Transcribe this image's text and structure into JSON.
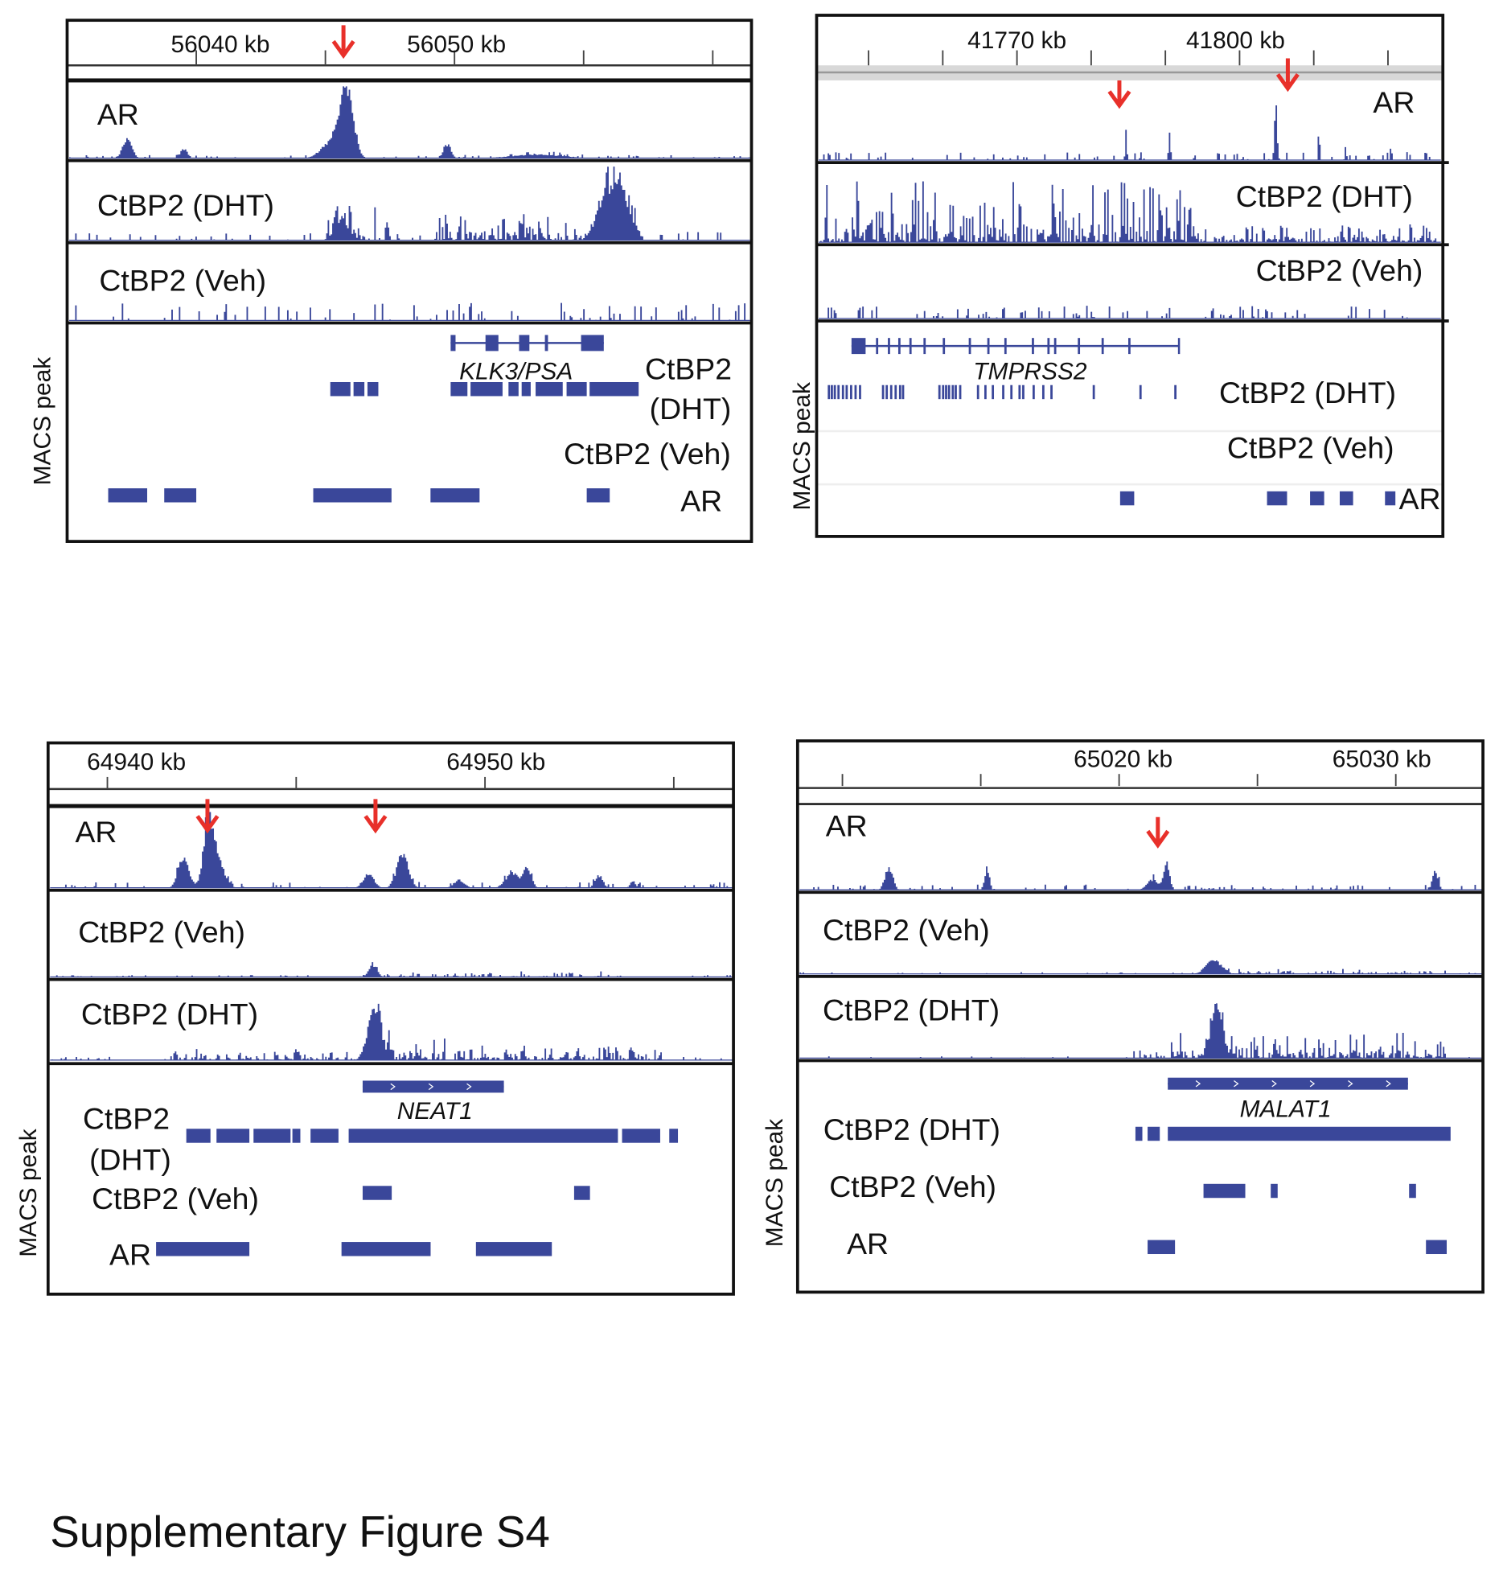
{
  "caption": "Supplementary Figure S4",
  "colors": {
    "signal": "#3a479a",
    "arrow": "#e8302a",
    "frame": "#111111"
  },
  "chart_data": [
    {
      "type": "genome-track",
      "xunit": "kb",
      "xlim": [
        56035.0,
        56061.5
      ],
      "ticks": [
        56040,
        56045,
        56050,
        56055,
        56060
      ],
      "tick_labels": [
        "56040 kb",
        "56050 kb"
      ],
      "arrows_kb": [
        56045.7
      ],
      "tracks": [
        {
          "name": "AR",
          "peaks": [
            [
              56037.3,
              0.32,
              0.25
            ],
            [
              56039.5,
              0.14,
              0.2
            ],
            [
              56045.8,
              1.0,
              0.35
            ],
            [
              56045.3,
              0.3,
              0.6
            ],
            [
              56049.7,
              0.22,
              0.2
            ],
            [
              56053.2,
              0.06,
              1.5
            ]
          ],
          "regions": [],
          "noise": 0.05
        },
        {
          "name": "CtBP2 (DHT)",
          "peaks": [
            [
              56045.6,
              0.3,
              0.4
            ],
            [
              56055.9,
              0.7,
              0.5
            ],
            [
              56056.5,
              0.55,
              0.4
            ]
          ],
          "regions": [
            [
              56045.0,
              56047.5,
              0.35
            ],
            [
              56049.2,
              56057.2,
              0.4
            ]
          ],
          "noise": 0.12
        },
        {
          "name": "CtBP2 (Veh)",
          "peaks": [],
          "regions": [],
          "noise": 0.25
        }
      ],
      "macs_label": "MACS peak",
      "gene": {
        "name": "KLK3/PSA",
        "start": 56049.85,
        "end": 56055.78,
        "exons": [
          [
            56049.85,
            56050.04
          ],
          [
            56051.2,
            56051.7
          ],
          [
            56052.5,
            56052.9
          ],
          [
            56053.5,
            56053.62
          ],
          [
            56054.9,
            56055.78
          ]
        ]
      },
      "peak_rows": [
        {
          "name": "CtBP2\n(DHT)",
          "label_lines": [
            "CtBP2",
            "(DHT)"
          ],
          "peaks": [
            [
              56045.19,
              56045.97
            ],
            [
              56046.09,
              56046.51
            ],
            [
              56046.63,
              56047.05
            ],
            [
              56049.85,
              56050.5
            ],
            [
              56050.62,
              56051.86
            ],
            [
              56052.09,
              56052.48
            ],
            [
              56052.6,
              56052.95
            ],
            [
              56053.14,
              56054.19
            ],
            [
              56054.34,
              56055.12
            ],
            [
              56055.23,
              56057.13
            ]
          ]
        },
        {
          "name": "CtBP2 (Veh)",
          "label_lines": [
            "CtBP2 (Veh)"
          ],
          "peaks": []
        },
        {
          "name": "AR",
          "label_lines": [
            "AR"
          ],
          "peaks": [
            [
              56036.59,
              56038.1
            ],
            [
              56038.76,
              56040.0
            ],
            [
              56044.53,
              56047.56
            ],
            [
              56049.07,
              56050.97
            ],
            [
              56055.12,
              56056.01
            ]
          ]
        }
      ]
    },
    {
      "type": "genome-track",
      "xunit": "kb",
      "xlim": [
        41743.0,
        41827.4
      ],
      "ticks": [
        41750,
        41760,
        41770,
        41780,
        41790,
        41800,
        41810,
        41820
      ],
      "tick_labels": [
        "41770 kb",
        "41800 kb"
      ],
      "arrows_kb": [
        41783.8,
        41806.5
      ],
      "tracks": [
        {
          "name": "AR",
          "peaks": [
            [
              41784.6,
              0.5,
              0.15
            ],
            [
              41790.5,
              0.42,
              0.15
            ],
            [
              41804.8,
              0.85,
              0.25
            ],
            [
              41810.6,
              0.45,
              0.15
            ],
            [
              41814.2,
              0.25,
              0.15
            ],
            [
              41820.3,
              0.22,
              0.15
            ]
          ],
          "regions": [],
          "noise": 0.12
        },
        {
          "name": "CtBP2 (DHT)",
          "peaks": [],
          "regions": [
            [
              41743.5,
              41793.5,
              0.85
            ],
            [
              41793.5,
              41826.5,
              0.25
            ]
          ],
          "noise": 0.1
        },
        {
          "name": "CtBP2 (Veh)",
          "peaks": [],
          "regions": [],
          "noise": 0.2
        }
      ],
      "macs_label": "MACS peak",
      "gene": {
        "name": "TMPRSS2",
        "start": 41747.7,
        "end": 41791.9,
        "exons": [
          [
            41747.7,
            41749.6
          ],
          [
            41751.0,
            41751.3
          ],
          [
            41752.6,
            41752.9
          ],
          [
            41754.0,
            41754.3
          ],
          [
            41755.5,
            41755.8
          ],
          [
            41757.4,
            41757.7
          ],
          [
            41760.0,
            41760.3
          ],
          [
            41763.5,
            41763.8
          ],
          [
            41766.0,
            41766.3
          ],
          [
            41768.3,
            41768.6
          ],
          [
            41772.0,
            41772.3
          ],
          [
            41774.1,
            41774.4
          ],
          [
            41775.0,
            41775.3
          ],
          [
            41778.2,
            41778.5
          ],
          [
            41781.4,
            41781.7
          ],
          [
            41785.0,
            41785.3
          ],
          [
            41791.7,
            41791.9
          ]
        ]
      },
      "peak_rows": [
        {
          "name": "CtBP2 (DHT)",
          "label_lines": [
            "CtBP2 (DHT)"
          ],
          "peaks": [
            [
              41744.5,
              41744.8
            ],
            [
              41744.9,
              41745.2
            ],
            [
              41745.3,
              41745.6
            ],
            [
              41745.8,
              41746.1
            ],
            [
              41746.4,
              41746.7
            ],
            [
              41746.9,
              41747.2
            ],
            [
              41747.5,
              41747.8
            ],
            [
              41748.1,
              41748.4
            ],
            [
              41748.7,
              41749.0
            ],
            [
              41751.8,
              41752.1
            ],
            [
              41752.3,
              41752.6
            ],
            [
              41752.9,
              41753.2
            ],
            [
              41753.5,
              41753.8
            ],
            [
              41754.1,
              41754.4
            ],
            [
              41754.5,
              41754.8
            ],
            [
              41759.4,
              41759.7
            ],
            [
              41759.9,
              41760.2
            ],
            [
              41760.3,
              41760.6
            ],
            [
              41760.7,
              41761.0
            ],
            [
              41761.2,
              41761.5
            ],
            [
              41761.6,
              41761.9
            ],
            [
              41762.2,
              41762.5
            ],
            [
              41764.6,
              41764.9
            ],
            [
              41765.6,
              41765.9
            ],
            [
              41766.6,
              41766.9
            ],
            [
              41768.0,
              41768.3
            ],
            [
              41769.1,
              41769.4
            ],
            [
              41770.2,
              41770.5
            ],
            [
              41770.7,
              41771.0
            ],
            [
              41772.1,
              41772.4
            ],
            [
              41773.4,
              41773.7
            ],
            [
              41774.5,
              41774.8
            ],
            [
              41780.2,
              41780.5
            ],
            [
              41786.5,
              41786.8
            ],
            [
              41791.2,
              41791.5
            ]
          ]
        },
        {
          "name": "CtBP2 (Veh)",
          "label_lines": [
            "CtBP2 (Veh)"
          ],
          "peaks": []
        },
        {
          "name": "AR",
          "label_lines": [
            "AR"
          ],
          "peaks": [
            [
              41783.9,
              41785.8
            ],
            [
              41803.7,
              41806.4
            ],
            [
              41809.5,
              41811.4
            ],
            [
              41813.5,
              41815.3
            ],
            [
              41819.6,
              41821.0
            ]
          ]
        }
      ]
    },
    {
      "type": "genome-track",
      "xunit": "kb",
      "xlim": [
        64938.43,
        64956.58
      ],
      "ticks": [
        64940,
        64945,
        64950,
        64955
      ],
      "tick_labels": [
        "64940 kb",
        "64950 kb"
      ],
      "arrows_kb": [
        64942.65,
        64947.1
      ],
      "tracks": [
        {
          "name": "AR",
          "peaks": [
            [
              64942.0,
              0.45,
              0.2
            ],
            [
              64942.65,
              0.95,
              0.18
            ],
            [
              64942.9,
              0.4,
              0.25
            ],
            [
              64946.9,
              0.2,
              0.2
            ],
            [
              64947.8,
              0.5,
              0.22
            ],
            [
              64949.3,
              0.12,
              0.2
            ],
            [
              64950.7,
              0.22,
              0.25
            ],
            [
              64951.1,
              0.3,
              0.15
            ],
            [
              64953.0,
              0.18,
              0.15
            ],
            [
              64953.9,
              0.1,
              0.1
            ]
          ],
          "regions": [],
          "noise": 0.08
        },
        {
          "name": "CtBP2 (Veh)",
          "peaks": [
            [
              64947.0,
              0.18,
              0.15
            ]
          ],
          "regions": [
            [
              64947.0,
              64953.5,
              0.06
            ]
          ],
          "noise": 0.03
        },
        {
          "name": "CtBP2 (DHT)",
          "peaks": [
            [
              64947.05,
              0.75,
              0.25
            ]
          ],
          "regions": [
            [
              64947.0,
              64949.2,
              0.35
            ],
            [
              64949.2,
              64954.7,
              0.2
            ],
            [
              64941.5,
              64946.5,
              0.12
            ]
          ],
          "noise": 0.05
        }
      ],
      "macs_label": "MACS peak",
      "gene": {
        "name": "NEAT1",
        "start": 64946.76,
        "end": 64950.5,
        "exons": [
          [
            64946.76,
            64950.5
          ]
        ]
      },
      "peak_rows": [
        {
          "name": "CtBP2 (DHT)",
          "label_lines": [
            "CtBP2",
            "(DHT)"
          ],
          "peaks": [
            [
              64942.09,
              64942.73
            ],
            [
              64942.89,
              64943.76
            ],
            [
              64943.87,
              64944.85
            ],
            [
              64944.9,
              64945.11
            ],
            [
              64945.38,
              64946.12
            ],
            [
              64946.39,
              64953.52
            ],
            [
              64953.63,
              64954.64
            ],
            [
              64954.88,
              64955.11
            ]
          ]
        },
        {
          "name": "CtBP2 (Veh)",
          "label_lines": [
            "CtBP2 (Veh)"
          ],
          "peaks": [
            [
              64946.76,
              64947.53
            ],
            [
              64952.36,
              64952.78
            ]
          ]
        },
        {
          "name": "AR",
          "label_lines": [
            "AR"
          ],
          "peaks": [
            [
              64941.29,
              64943.76
            ],
            [
              64946.2,
              64948.56
            ],
            [
              64949.76,
              64951.77
            ]
          ]
        }
      ]
    },
    {
      "type": "genome-track",
      "xunit": "kb",
      "xlim": [
        65008.38,
        65033.15
      ],
      "ticks": [
        65010,
        65015,
        65020,
        65025,
        65030
      ],
      "tick_labels": [
        "65020 kb",
        "65030 kb"
      ],
      "arrows_kb": [
        65021.4
      ],
      "tracks": [
        {
          "name": "AR",
          "peaks": [
            [
              65011.65,
              0.3,
              0.2
            ],
            [
              65015.2,
              0.32,
              0.12
            ],
            [
              65021.7,
              0.35,
              0.15
            ],
            [
              65021.2,
              0.15,
              0.3
            ],
            [
              65031.4,
              0.25,
              0.15
            ]
          ],
          "regions": [],
          "noise": 0.07
        },
        {
          "name": "CtBP2 (Veh)",
          "peaks": [
            [
              65023.4,
              0.2,
              0.4
            ]
          ],
          "regions": [
            [
              65023.0,
              65031.9,
              0.05
            ]
          ],
          "noise": 0.03
        },
        {
          "name": "CtBP2 (DHT)",
          "peaks": [
            [
              65023.5,
              0.75,
              0.3
            ]
          ],
          "regions": [
            [
              65021.8,
              65031.9,
              0.35
            ],
            [
              65020.5,
              65021.7,
              0.1
            ]
          ],
          "noise": 0.03
        }
      ],
      "macs_label": "MACS peak",
      "gene": {
        "name": "MALAT1",
        "start": 65021.76,
        "end": 65030.44,
        "exons": [
          [
            65021.76,
            65030.44
          ]
        ]
      },
      "peak_rows": [
        {
          "name": "CtBP2 (DHT)",
          "label_lines": [
            "CtBP2 (DHT)"
          ],
          "peaks": [
            [
              65020.59,
              65020.84
            ],
            [
              65021.03,
              65021.47
            ],
            [
              65021.76,
              65031.98
            ]
          ]
        },
        {
          "name": "CtBP2 (Veh)",
          "label_lines": [
            "CtBP2 (Veh)"
          ],
          "peaks": [
            [
              65023.05,
              65024.56
            ],
            [
              65025.48,
              65025.73
            ],
            [
              65030.48,
              65030.73
            ]
          ]
        },
        {
          "name": "AR",
          "label_lines": [
            "AR"
          ],
          "peaks": [
            [
              65021.03,
              65022.02
            ],
            [
              65031.09,
              65031.84
            ]
          ]
        }
      ]
    }
  ]
}
